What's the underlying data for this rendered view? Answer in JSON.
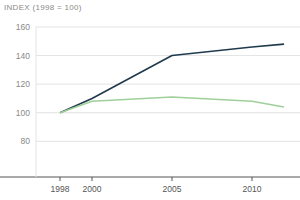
{
  "chart_data": {
    "type": "line",
    "y_label": "INDEX (1998 = 100)",
    "x": [
      1998,
      2000,
      2005,
      2010,
      2012
    ],
    "xlim": [
      1996.5,
      2013
    ],
    "xticks": [
      1998,
      2000,
      2005,
      2010
    ],
    "ylim": [
      55,
      160
    ],
    "yticks": [
      80,
      100,
      120,
      140,
      160
    ],
    "grid": true,
    "series": [
      {
        "color": "#1f3a4d",
        "values": [
          100,
          110,
          140,
          146,
          148
        ]
      },
      {
        "color": "#9fcf9a",
        "values": [
          100,
          108,
          111,
          108,
          104
        ]
      }
    ]
  }
}
